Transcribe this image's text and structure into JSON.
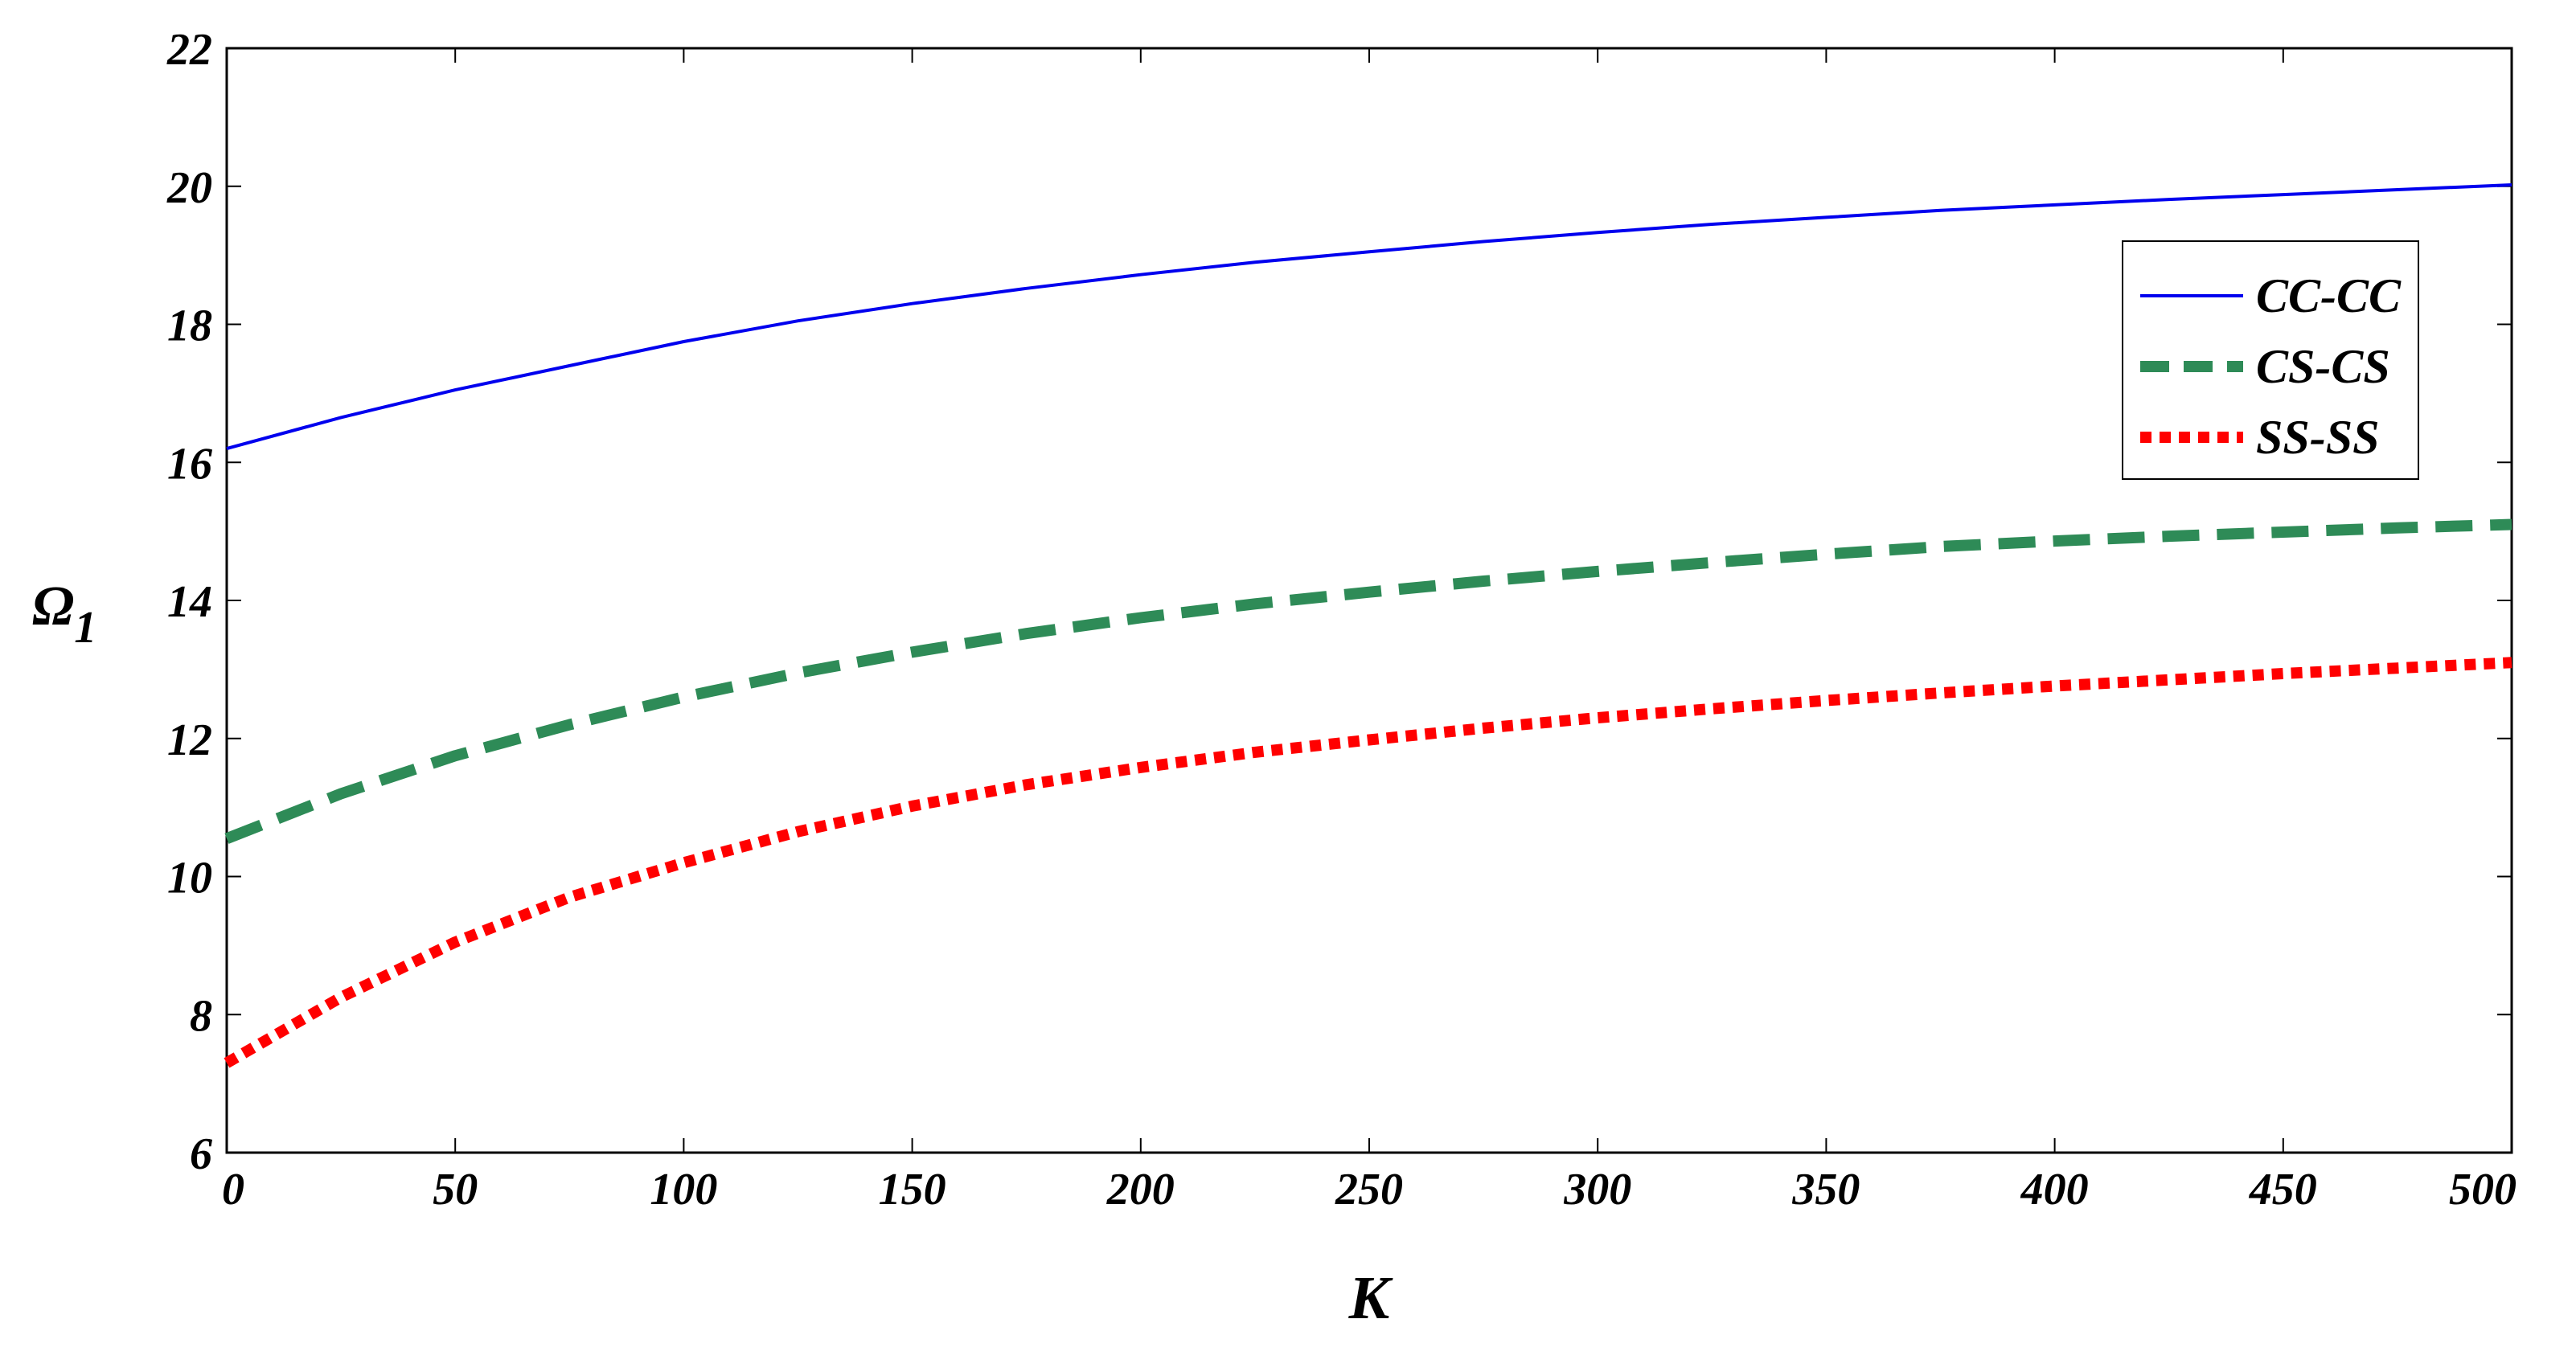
{
  "chart_data": {
    "type": "line",
    "title": "",
    "xlabel": "K",
    "ylabel_main": "Ω",
    "ylabel_sub": "1",
    "xlim": [
      0,
      500
    ],
    "ylim": [
      6,
      22
    ],
    "xticks": [
      0,
      50,
      100,
      150,
      200,
      250,
      300,
      350,
      400,
      450,
      500
    ],
    "yticks": [
      6,
      8,
      10,
      12,
      14,
      16,
      18,
      20,
      22
    ],
    "grid": false,
    "legend_position": "right",
    "x": [
      0,
      25,
      50,
      75,
      100,
      125,
      150,
      175,
      200,
      225,
      250,
      275,
      300,
      325,
      350,
      375,
      400,
      425,
      450,
      475,
      500
    ],
    "series": [
      {
        "name": "CC-CC",
        "color": "#0000ee",
        "style": "solid",
        "values": [
          16.2,
          16.65,
          17.05,
          17.4,
          17.75,
          18.05,
          18.3,
          18.52,
          18.72,
          18.9,
          19.05,
          19.2,
          19.33,
          19.45,
          19.55,
          19.65,
          19.73,
          19.81,
          19.88,
          19.95,
          20.02
        ]
      },
      {
        "name": "CS-CS",
        "color": "#2e8b57",
        "style": "dashed",
        "values": [
          10.55,
          11.2,
          11.75,
          12.2,
          12.6,
          12.95,
          13.25,
          13.52,
          13.75,
          13.95,
          14.12,
          14.28,
          14.42,
          14.55,
          14.67,
          14.78,
          14.86,
          14.93,
          14.99,
          15.05,
          15.1
        ]
      },
      {
        "name": "SS-SS",
        "color": "#ff0000",
        "style": "dotted",
        "values": [
          7.3,
          8.25,
          9.05,
          9.7,
          10.2,
          10.65,
          11.02,
          11.33,
          11.58,
          11.8,
          11.98,
          12.15,
          12.3,
          12.43,
          12.55,
          12.66,
          12.76,
          12.85,
          12.94,
          13.02,
          13.1
        ]
      }
    ]
  }
}
